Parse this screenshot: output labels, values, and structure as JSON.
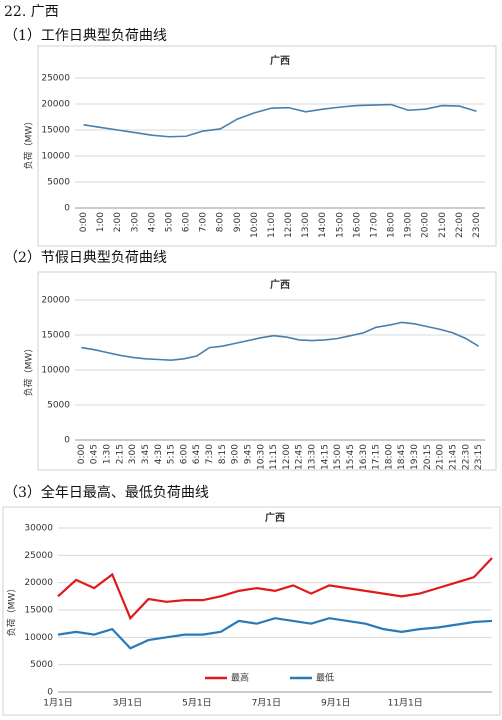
{
  "heading": "22. 广西",
  "chart_data": [
    {
      "type": "line",
      "caption": "（1）工作日典型负荷曲线",
      "title": "广西",
      "y_label": "负荷（MW）",
      "categories": [
        "0:00",
        "1:00",
        "2:00",
        "3:00",
        "4:00",
        "5:00",
        "6:00",
        "7:00",
        "8:00",
        "9:00",
        "10:00",
        "11:00",
        "12:00",
        "13:00",
        "14:00",
        "15:00",
        "16:00",
        "17:00",
        "18:00",
        "19:00",
        "20:00",
        "21:00",
        "22:00",
        "23:00"
      ],
      "series": [
        {
          "name": null,
          "color": "#4a7fab",
          "values": [
            16000,
            15500,
            15000,
            14500,
            14000,
            13700,
            13800,
            14800,
            15200,
            17100,
            18300,
            19200,
            19300,
            18500,
            19000,
            19400,
            19700,
            19800,
            19900,
            18800,
            19000,
            19700,
            19600,
            18600
          ]
        }
      ],
      "ylim": [
        0,
        25000
      ],
      "yticks": [
        0,
        5000,
        10000,
        15000,
        20000,
        25000
      ],
      "grid": true,
      "xlabel_rotate": true,
      "legend": null
    },
    {
      "type": "line",
      "caption": "（2）节假日典型负荷曲线",
      "title": "广西",
      "y_label": "负荷（MW）",
      "categories": [
        "0:00",
        "0:45",
        "1:30",
        "2:15",
        "3:00",
        "3:45",
        "4:30",
        "5:15",
        "6:00",
        "6:45",
        "7:30",
        "8:15",
        "9:00",
        "9:45",
        "10:30",
        "11:15",
        "12:00",
        "12:45",
        "13:30",
        "14:15",
        "15:00",
        "15:45",
        "16:30",
        "17:15",
        "18:00",
        "18:45",
        "19:30",
        "20:15",
        "21:00",
        "21:45",
        "22:30",
        "23:15"
      ],
      "series": [
        {
          "name": null,
          "color": "#4a7fab",
          "values": [
            13200,
            12900,
            12500,
            12100,
            11800,
            11600,
            11500,
            11400,
            11600,
            12000,
            13200,
            13400,
            13800,
            14200,
            14600,
            14900,
            14700,
            14300,
            14200,
            14300,
            14500,
            14900,
            15300,
            16100,
            16400,
            16800,
            16600,
            16200,
            15800,
            15300,
            14500,
            13400
          ]
        }
      ],
      "ylim": [
        0,
        20000
      ],
      "yticks": [
        0,
        5000,
        10000,
        15000,
        20000
      ],
      "grid": true,
      "xlabel_rotate": true,
      "legend": null
    },
    {
      "type": "line",
      "caption": "（3）全年日最高、最低负荷曲线",
      "title": "广西",
      "y_label": "负荷（MW）",
      "categories": [
        "1月1日",
        null,
        null,
        null,
        "3月1日",
        null,
        null,
        null,
        "5月1日",
        null,
        null,
        null,
        "7月1日",
        null,
        null,
        null,
        "9月1日",
        null,
        null,
        null,
        "11月1日",
        null,
        null,
        null,
        null
      ],
      "series": [
        {
          "name": "最高",
          "color": "#e0191b",
          "values": [
            17500,
            20500,
            19000,
            21500,
            13500,
            17000,
            16500,
            16800,
            16800,
            17500,
            18500,
            19000,
            18500,
            19500,
            18000,
            19500,
            19000,
            18500,
            18000,
            17500,
            18000,
            19000,
            20000,
            21000,
            24500
          ]
        },
        {
          "name": "最低",
          "color": "#2a7ab8",
          "values": [
            10500,
            11000,
            10500,
            11500,
            8000,
            9500,
            10000,
            10500,
            10500,
            11000,
            13000,
            12500,
            13500,
            13000,
            12500,
            13500,
            13000,
            12500,
            11500,
            11000,
            11500,
            11800,
            12300,
            12800,
            13000
          ]
        }
      ],
      "ylim": [
        0,
        30000
      ],
      "yticks": [
        0,
        5000,
        10000,
        15000,
        20000,
        25000,
        30000
      ],
      "grid": true,
      "xlabel_rotate": false,
      "legend": "bottom"
    }
  ]
}
